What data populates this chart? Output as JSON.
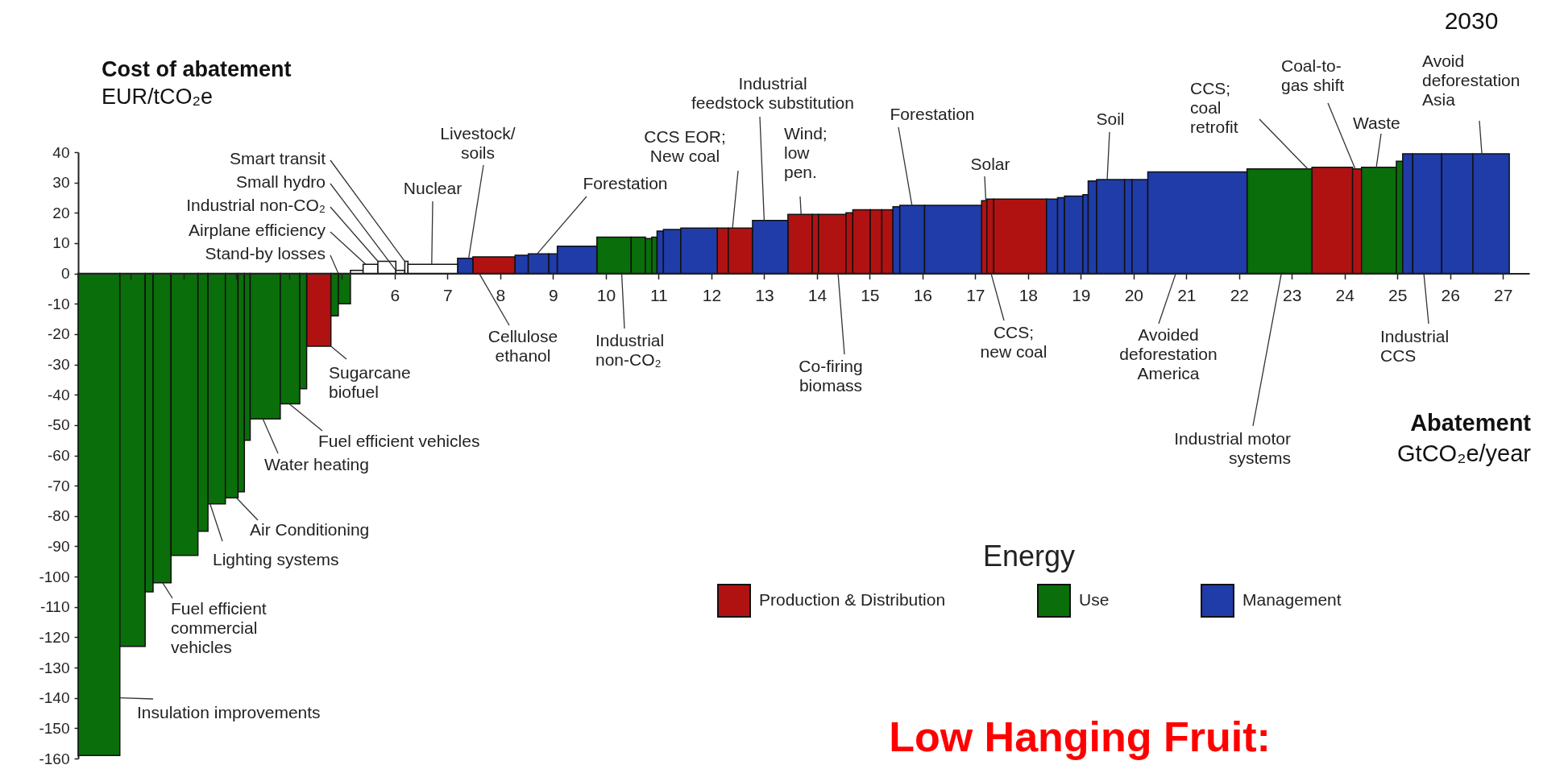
{
  "chart_data": {
    "type": "histogram",
    "ylabel": "Cost of abatement\nEUR/tCO₂e",
    "xlabel": "Abatement\nGtCO₂e/year",
    "legend_title": "Energy",
    "legend": "bottom right",
    "xlim": [
      0,
      27.5
    ],
    "ylim": [
      -160,
      40
    ],
    "xticks": [
      {
        "value": 0,
        "label": null
      },
      {
        "value": 1,
        "label": null
      },
      {
        "value": 2,
        "label": null
      },
      {
        "value": 3,
        "label": null
      },
      {
        "value": 4,
        "label": null
      },
      {
        "value": 5,
        "label": null
      },
      6,
      7,
      8,
      9,
      10,
      11,
      12,
      13,
      14,
      15,
      16,
      17,
      18,
      19,
      20,
      21,
      22,
      23,
      24,
      25,
      26,
      27
    ],
    "yticks": [
      40,
      30,
      20,
      10,
      0,
      -10,
      -20,
      -30,
      -40,
      -50,
      -60,
      -70,
      -80,
      -90,
      -100,
      -110,
      -120,
      -130,
      -140,
      -150,
      -160
    ],
    "bins": [
      0,
      0.79,
      1.27,
      1.42,
      1.76,
      2.27,
      2.46,
      2.79,
      3.03,
      3.15,
      3.26,
      3.83,
      4.2,
      4.33,
      4.79,
      4.93,
      5.16,
      5.4,
      5.68,
      6.02,
      6.19,
      6.25,
      7.19,
      7.48,
      8.28,
      8.53,
      8.92,
      9.08,
      9.83,
      10.48,
      10.75,
      10.87,
      10.97,
      11.09,
      11.42,
      12.11,
      12.32,
      12.78,
      13.45,
      13.91,
      14.03,
      14.55,
      14.68,
      15.01,
      15.23,
      15.44,
      15.57,
      16.04,
      17.12,
      17.22,
      17.35,
      18.35,
      18.56,
      18.69,
      19.04,
      19.14,
      19.3,
      19.83,
      19.97,
      20.27,
      22.15,
      23.38,
      24.15,
      24.32,
      24.98,
      25.1,
      25.29,
      25.84,
      26.43,
      27.12
    ],
    "series": [
      {
        "name": "Production & Distribution",
        "color": "#b01212",
        "values": [
          null,
          null,
          null,
          null,
          null,
          null,
          null,
          null,
          null,
          null,
          null,
          null,
          null,
          -24,
          null,
          null,
          null,
          null,
          null,
          null,
          null,
          null,
          null,
          5.5,
          null,
          null,
          null,
          null,
          null,
          null,
          null,
          null,
          null,
          null,
          null,
          15,
          15,
          null,
          19.5,
          19.5,
          19.5,
          20,
          21,
          21,
          21,
          null,
          null,
          null,
          24,
          24.5,
          24.5,
          null,
          null,
          null,
          null,
          null,
          null,
          null,
          null,
          null,
          null,
          35,
          34.5,
          null,
          null,
          null,
          null,
          null,
          null
        ]
      },
      {
        "name": "Use",
        "color": "#0a6e0a",
        "values": [
          -159,
          -123,
          -105,
          -102,
          -93,
          -85,
          -76,
          -74,
          -72,
          -55,
          -48,
          -43,
          -38,
          null,
          -14,
          -10,
          null,
          null,
          null,
          null,
          null,
          null,
          null,
          null,
          null,
          null,
          null,
          null,
          12,
          12,
          11.5,
          12,
          null,
          null,
          null,
          null,
          null,
          null,
          null,
          null,
          null,
          null,
          null,
          null,
          null,
          null,
          null,
          null,
          null,
          null,
          null,
          null,
          null,
          null,
          null,
          null,
          null,
          null,
          null,
          null,
          34.5,
          null,
          null,
          35,
          37,
          null,
          null,
          null,
          null
        ]
      },
      {
        "name": "Management",
        "color": "#1f3ca8",
        "values": [
          null,
          null,
          null,
          null,
          null,
          null,
          null,
          null,
          null,
          null,
          null,
          null,
          null,
          null,
          null,
          null,
          null,
          null,
          null,
          null,
          null,
          null,
          5,
          null,
          6,
          6.5,
          6.5,
          9,
          null,
          null,
          null,
          null,
          14,
          14.5,
          15,
          null,
          null,
          17.5,
          null,
          null,
          null,
          null,
          null,
          null,
          null,
          22,
          22.5,
          22.5,
          null,
          null,
          null,
          24.5,
          25,
          25.5,
          26,
          30.5,
          31,
          31,
          31,
          33.5,
          null,
          null,
          null,
          null,
          null,
          39.5,
          39.5,
          39.5,
          39.5
        ]
      },
      {
        "color": "#ffffff",
        "values": [
          null,
          null,
          null,
          null,
          null,
          null,
          null,
          null,
          null,
          null,
          null,
          null,
          null,
          null,
          null,
          null,
          1,
          3,
          4,
          1,
          4,
          3,
          null,
          null,
          null,
          null,
          null,
          null,
          null,
          null,
          null,
          null,
          null,
          null,
          null,
          null,
          null,
          null,
          null,
          null,
          null,
          null,
          null,
          null,
          null,
          null,
          null,
          null,
          null,
          null,
          null,
          null,
          null,
          null,
          null,
          null,
          null,
          null,
          null,
          null,
          null,
          null,
          null,
          null,
          null,
          null,
          null,
          null,
          null
        ]
      }
    ],
    "annotations": [
      "2030",
      {
        "text": "Smart transit",
        "x": 6.19,
        "y": 4
      },
      {
        "text": "Small hydro",
        "x": 6.02,
        "y": 1
      },
      {
        "text": "Industrial non-CO₂",
        "x": 5.68,
        "y": 4
      },
      {
        "text": "Airplane efficiency",
        "x": 5.45,
        "y": 3
      },
      {
        "text": "Stand-by losses",
        "x": 4.93,
        "y": 0
      },
      {
        "text": "Nuclear",
        "x": 6.7,
        "y": 3
      },
      {
        "text": "Livestock/\nsoils",
        "x": 7.4,
        "y": 5
      },
      {
        "text": "Forestation",
        "x": 8.7,
        "y": 6.5
      },
      {
        "text": "CCS EOR;\nNew coal",
        "x": 12.4,
        "y": 15
      },
      {
        "text": "Industrial\nfeedstock substitution",
        "x": 13,
        "y": 17.5
      },
      {
        "text": "Wind;\nlow\npen.",
        "x": 13.7,
        "y": 19.5
      },
      {
        "text": "Forestation",
        "x": 15.8,
        "y": 22.5
      },
      {
        "text": "Solar",
        "x": 17.2,
        "y": 24
      },
      {
        "text": "Soil",
        "x": 19.5,
        "y": 31
      },
      {
        "text": "CCS;\ncoal\nretrofit",
        "x": 23.3,
        "y": 34.5
      },
      {
        "text": "Coal-to-\ngas shift",
        "x": 24.2,
        "y": 34.5
      },
      {
        "text": "Waste",
        "x": 24.6,
        "y": 35
      },
      {
        "text": "Avoid\ndeforestation\nAsia",
        "x": 26.6,
        "y": 39.5
      },
      {
        "text": "Cellulose\nethanol",
        "x": 7.6,
        "y": 0
      },
      {
        "text": "Industrial\nnon-CO₂",
        "x": 10.3,
        "y": 0
      },
      {
        "text": "Co-firing\nbiomass",
        "x": 14.4,
        "y": 0
      },
      {
        "text": "CCS;\nnew coal",
        "x": 17.3,
        "y": 0
      },
      {
        "text": "Avoided\ndeforestation\nAmerica",
        "x": 20.8,
        "y": 0
      },
      {
        "text": "Industrial motor\nsystems",
        "x": 22.8,
        "y": 0
      },
      {
        "text": "Industrial\nCCS",
        "x": 25.5,
        "y": 0
      },
      {
        "text": "Sugarcane\nbiofuel",
        "x": 4.79,
        "y": -24
      },
      {
        "text": "Fuel efficient vehicles",
        "x": 4,
        "y": -43
      },
      {
        "text": "Water heating",
        "x": 3.5,
        "y": -48
      },
      {
        "text": "Air Conditioning",
        "x": 3,
        "y": -74
      },
      {
        "text": "Lighting systems",
        "x": 2.5,
        "y": -76
      },
      {
        "text": "Fuel efficient\ncommercial\nvehicles",
        "x": 1.6,
        "y": -102
      },
      {
        "text": "Insulation improvements",
        "x": 0.79,
        "y": -140
      },
      "Low Hanging Fruit:"
    ]
  }
}
